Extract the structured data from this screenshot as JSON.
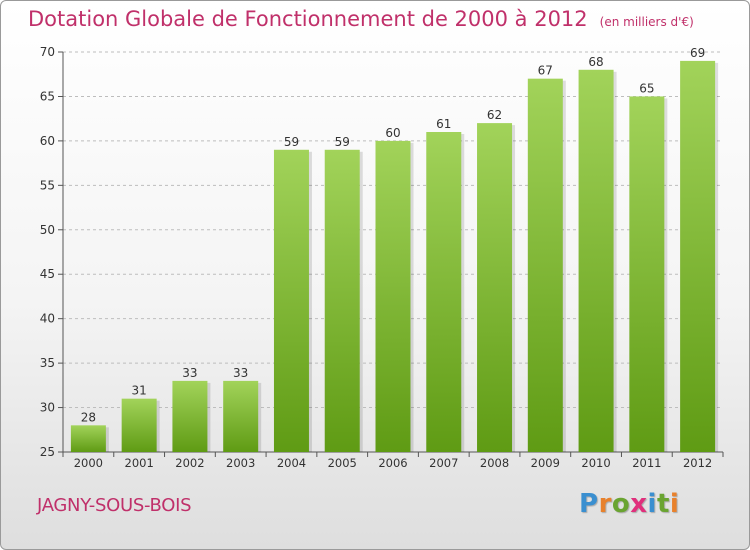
{
  "title": "Dotation Globale de Fonctionnement de 2000 à 2012",
  "unit": "(en milliers d'€)",
  "commune": "JAGNY-SOUS-BOIS",
  "brand": {
    "text": "Proxiti",
    "letters": [
      "P",
      "r",
      "o",
      "x",
      "i",
      "t",
      "i"
    ],
    "colors": [
      "#3a8fd0",
      "#e8812c",
      "#6aa431",
      "#e02f7c",
      "#3a8fd0",
      "#6aa431",
      "#e8812c"
    ]
  },
  "colors": {
    "title": "#c0306a",
    "bar_top": "#a2d35a",
    "bar_bottom": "#5f9b14",
    "grid": "#bdbdbd",
    "axis": "#555555"
  },
  "chart_data": {
    "type": "bar",
    "categories": [
      "2000",
      "2001",
      "2002",
      "2003",
      "2004",
      "2005",
      "2006",
      "2007",
      "2008",
      "2009",
      "2010",
      "2011",
      "2012"
    ],
    "values": [
      28,
      31,
      33,
      33,
      59,
      59,
      60,
      61,
      62,
      67,
      68,
      65,
      69
    ],
    "ylim": [
      25,
      70
    ],
    "yticks": [
      25,
      30,
      35,
      40,
      45,
      50,
      55,
      60,
      65,
      70
    ],
    "grid": true,
    "legend": "none"
  }
}
